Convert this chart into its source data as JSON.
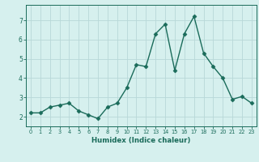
{
  "x": [
    0,
    1,
    2,
    3,
    4,
    5,
    6,
    7,
    8,
    9,
    10,
    11,
    12,
    13,
    14,
    15,
    16,
    17,
    18,
    19,
    20,
    21,
    22,
    23
  ],
  "y": [
    2.2,
    2.2,
    2.5,
    2.6,
    2.7,
    2.3,
    2.1,
    1.9,
    2.5,
    2.7,
    3.5,
    4.7,
    4.6,
    6.3,
    6.8,
    4.4,
    6.3,
    7.2,
    5.3,
    4.6,
    4.0,
    2.9,
    3.05,
    2.7
  ],
  "line_color": "#1a6b5a",
  "marker": "D",
  "marker_size": 2.5,
  "line_width": 1.0,
  "bg_color": "#d6f0ee",
  "grid_color": "#b8d8d8",
  "axis_color": "#1a6b5a",
  "tick_color": "#1a6b5a",
  "xlabel": "Humidex (Indice chaleur)",
  "xlim": [
    -0.5,
    23.5
  ],
  "ylim": [
    1.5,
    7.8
  ],
  "yticks": [
    2,
    3,
    4,
    5,
    6,
    7
  ],
  "xticks": [
    0,
    1,
    2,
    3,
    4,
    5,
    6,
    7,
    8,
    9,
    10,
    11,
    12,
    13,
    14,
    15,
    16,
    17,
    18,
    19,
    20,
    21,
    22,
    23
  ]
}
